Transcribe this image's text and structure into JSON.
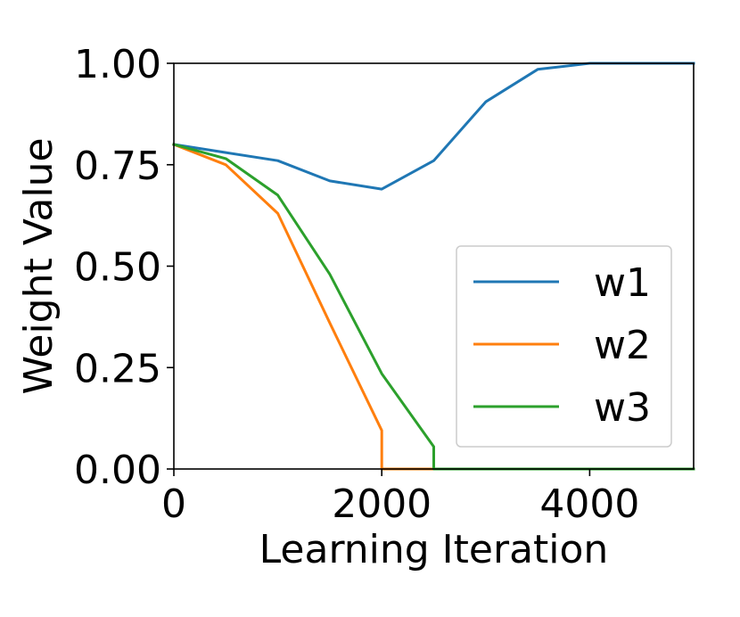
{
  "chart_data": {
    "type": "line",
    "title": "",
    "xlabel": "Learning Iteration",
    "ylabel": "Weight Value",
    "xlim": [
      0,
      5000
    ],
    "ylim": [
      0,
      1
    ],
    "xticks": [
      {
        "value": 0,
        "label": "0"
      },
      {
        "value": 2000,
        "label": "2000"
      },
      {
        "value": 4000,
        "label": "4000"
      }
    ],
    "yticks": [
      {
        "value": 0,
        "label": "0.00"
      },
      {
        "value": 0.25,
        "label": "0.25"
      },
      {
        "value": 0.5,
        "label": "0.50"
      },
      {
        "value": 0.75,
        "label": "0.75"
      },
      {
        "value": 1.0,
        "label": "1.00"
      }
    ],
    "grid": false,
    "legend_position": "lower-right",
    "series": [
      {
        "name": "w1",
        "color": "#1f77b4",
        "x": [
          0,
          500,
          1000,
          1500,
          2000,
          2500,
          3000,
          3500,
          4000,
          4500,
          5000
        ],
        "y": [
          0.8,
          0.78,
          0.76,
          0.71,
          0.69,
          0.76,
          0.905,
          0.985,
          1.0,
          1.0,
          1.0
        ]
      },
      {
        "name": "w2",
        "color": "#ff7f0e",
        "x": [
          0,
          500,
          1000,
          1500,
          2000,
          2000,
          2500,
          3000,
          3500,
          4000,
          4500,
          5000
        ],
        "y": [
          0.8,
          0.75,
          0.63,
          0.36,
          0.095,
          0.0,
          0.0,
          0.0,
          0.0,
          0.0,
          0.0,
          0.0
        ]
      },
      {
        "name": "w3",
        "color": "#2ca02c",
        "x": [
          0,
          500,
          1000,
          1500,
          2000,
          2500,
          2500,
          3000,
          3500,
          4000,
          4500,
          5000
        ],
        "y": [
          0.8,
          0.765,
          0.675,
          0.48,
          0.235,
          0.055,
          0.0,
          0.0,
          0.0,
          0.0,
          0.0,
          0.0
        ]
      }
    ]
  }
}
